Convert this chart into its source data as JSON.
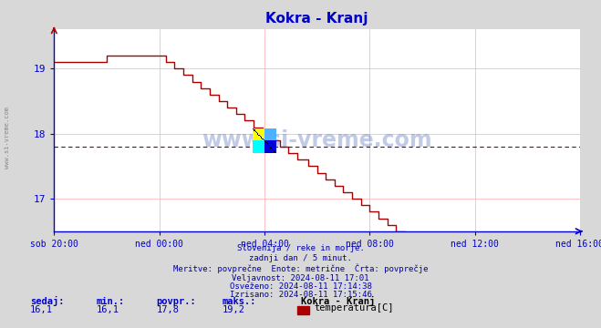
{
  "title": "Kokra - Kranj",
  "title_color": "#0000cc",
  "fig_bg_color": "#d8d8d8",
  "plot_bg_color": "#ffffff",
  "line_color": "#aa0000",
  "avg_line_color": "#880000",
  "avg_value": 17.8,
  "grid_color": "#ffaaaa",
  "x_tick_labels": [
    "sob 20:00",
    "ned 00:00",
    "ned 04:00",
    "ned 08:00",
    "ned 12:00",
    "ned 16:00"
  ],
  "x_tick_positions": [
    0,
    4,
    8,
    12,
    16,
    20
  ],
  "ylim_low": 16.5,
  "ylim_high": 19.6,
  "yticks": [
    17,
    18,
    19
  ],
  "sedaj": "16,1",
  "min_val": "16,1",
  "povpr": "17,8",
  "maks": "19,2",
  "station": "Kokra - Kranj",
  "param": "temperatura[C]",
  "info_lines": [
    "Slovenija / reke in morje.",
    "zadnji dan / 5 minut.",
    "Meritve: povprečne  Enote: metrične  Črta: povprečje",
    "Veljavnost: 2024-08-11 17:01",
    "Osveženo: 2024-08-11 17:14:38",
    "Izrisano: 2024-08-11 17:15:46"
  ],
  "watermark": "www.si-vreme.com",
  "sidebar_text": "www.si-vreme.com"
}
